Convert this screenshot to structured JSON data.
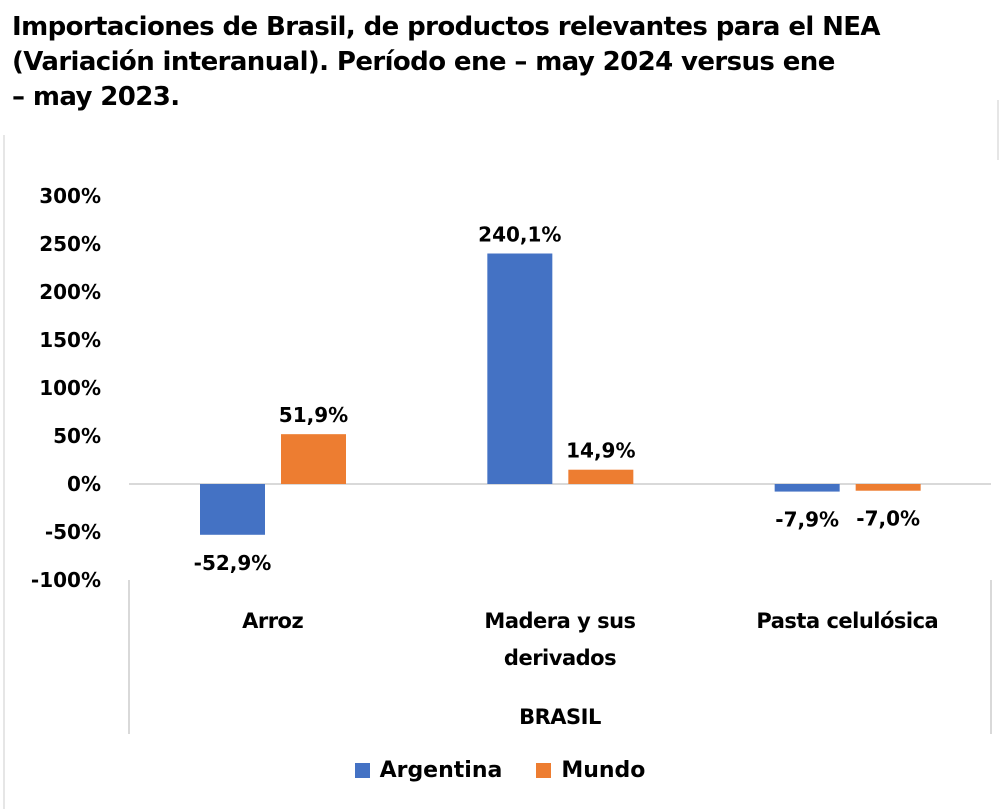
{
  "title_lines": [
    "Importaciones de Brasil, de productos relevantes para el NEA",
    "(Variación interanual). Período ene – may 2024 versus ene",
    "– may 2023."
  ],
  "chart_data": {
    "type": "bar",
    "title": "Importaciones de Brasil, de productos relevantes para el NEA (Variación interanual). Período ene – may 2024 versus ene – may 2023.",
    "categories": [
      {
        "label_lines": [
          "Arroz"
        ]
      },
      {
        "label_lines": [
          "Madera y sus",
          "derivados"
        ]
      },
      {
        "label_lines": [
          "Pasta celulósica"
        ]
      }
    ],
    "category_group_label": "BRASIL",
    "series": [
      {
        "name": "Argentina",
        "color": "#4472c4",
        "values": [
          -52.9,
          240.1,
          -7.9
        ],
        "labels": [
          "-52,9%",
          "240,1%",
          "-7,9%"
        ]
      },
      {
        "name": "Mundo",
        "color": "#ed7d31",
        "values": [
          51.9,
          14.9,
          -7.0
        ],
        "labels": [
          "51,9%",
          "14,9%",
          "-7,0%"
        ]
      }
    ],
    "ylim": [
      -100,
      300
    ],
    "yticks": [
      300,
      250,
      200,
      150,
      100,
      50,
      0,
      -50,
      -100
    ],
    "ytick_labels": [
      "300%",
      "250%",
      "200%",
      "150%",
      "100%",
      "50%",
      "0%",
      "-50%",
      "-100%"
    ],
    "xlabel": "",
    "ylabel": "",
    "grid": false,
    "legend_position": "bottom"
  },
  "legend": [
    {
      "label": "Argentina",
      "color": "#4472c4"
    },
    {
      "label": "Mundo",
      "color": "#ed7d31"
    }
  ]
}
